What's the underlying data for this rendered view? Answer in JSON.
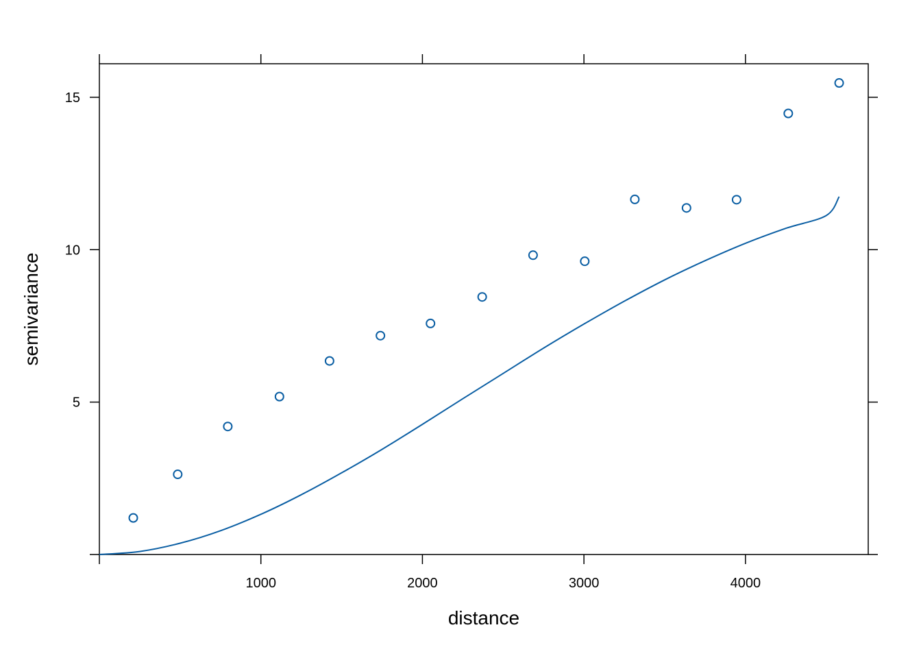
{
  "chart_data": {
    "type": "scatter",
    "title": "",
    "xlabel": "distance",
    "ylabel": "semivariance",
    "xlim": [
      0,
      4760
    ],
    "ylim": [
      0,
      16.1
    ],
    "x_ticks": [
      0,
      1000,
      2000,
      3000,
      4000
    ],
    "x_tick_labels": [
      "",
      "1000",
      "2000",
      "3000",
      "4000"
    ],
    "y_ticks": [
      0,
      5,
      10,
      15
    ],
    "y_tick_labels": [
      "",
      "5",
      "10",
      "15"
    ],
    "grid": false,
    "color": "#0a5ea3",
    "points": {
      "x": [
        210,
        485,
        795,
        1115,
        1425,
        1740,
        2050,
        2370,
        2685,
        3005,
        3315,
        3635,
        3945,
        4265,
        4580
      ],
      "y": [
        1.2,
        2.63,
        4.2,
        5.18,
        6.35,
        7.18,
        7.58,
        8.45,
        9.82,
        9.62,
        11.65,
        11.37,
        11.64,
        14.47,
        15.47
      ]
    },
    "fitted_curve": {
      "x": [
        0,
        250,
        500,
        750,
        1000,
        1250,
        1500,
        1750,
        2000,
        2250,
        2500,
        2750,
        3000,
        3250,
        3500,
        3750,
        4000,
        4250,
        4500,
        4580
      ],
      "y": [
        0,
        0.1,
        0.37,
        0.78,
        1.32,
        1.96,
        2.68,
        3.45,
        4.27,
        5.11,
        5.94,
        6.77,
        7.56,
        8.31,
        9.01,
        9.64,
        10.21,
        10.7,
        11.12,
        11.74
      ]
    }
  }
}
